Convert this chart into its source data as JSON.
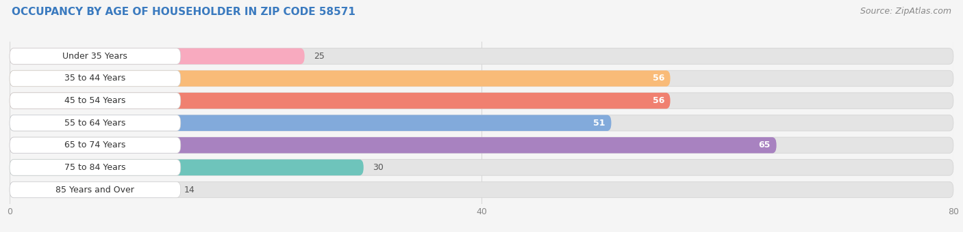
{
  "title": "OCCUPANCY BY AGE OF HOUSEHOLDER IN ZIP CODE 58571",
  "source": "Source: ZipAtlas.com",
  "categories": [
    "Under 35 Years",
    "35 to 44 Years",
    "45 to 54 Years",
    "55 to 64 Years",
    "65 to 74 Years",
    "75 to 84 Years",
    "85 Years and Over"
  ],
  "values": [
    25,
    56,
    56,
    51,
    65,
    30,
    14
  ],
  "bar_colors": [
    "#F8AABF",
    "#F9BB78",
    "#F08070",
    "#82AADB",
    "#A882C0",
    "#6EC4BB",
    "#BEBDE0"
  ],
  "xlim": [
    0,
    80
  ],
  "xticks": [
    0,
    40,
    80
  ],
  "background_color": "#f5f5f5",
  "bar_bg_color": "#e4e4e4",
  "label_bg_color": "#ffffff",
  "title_fontsize": 11,
  "source_fontsize": 9,
  "label_fontsize": 9,
  "value_fontsize": 9,
  "title_color": "#3a7abf",
  "label_color": "#333333",
  "value_color_light": "#ffffff",
  "value_color_dark": "#555555"
}
